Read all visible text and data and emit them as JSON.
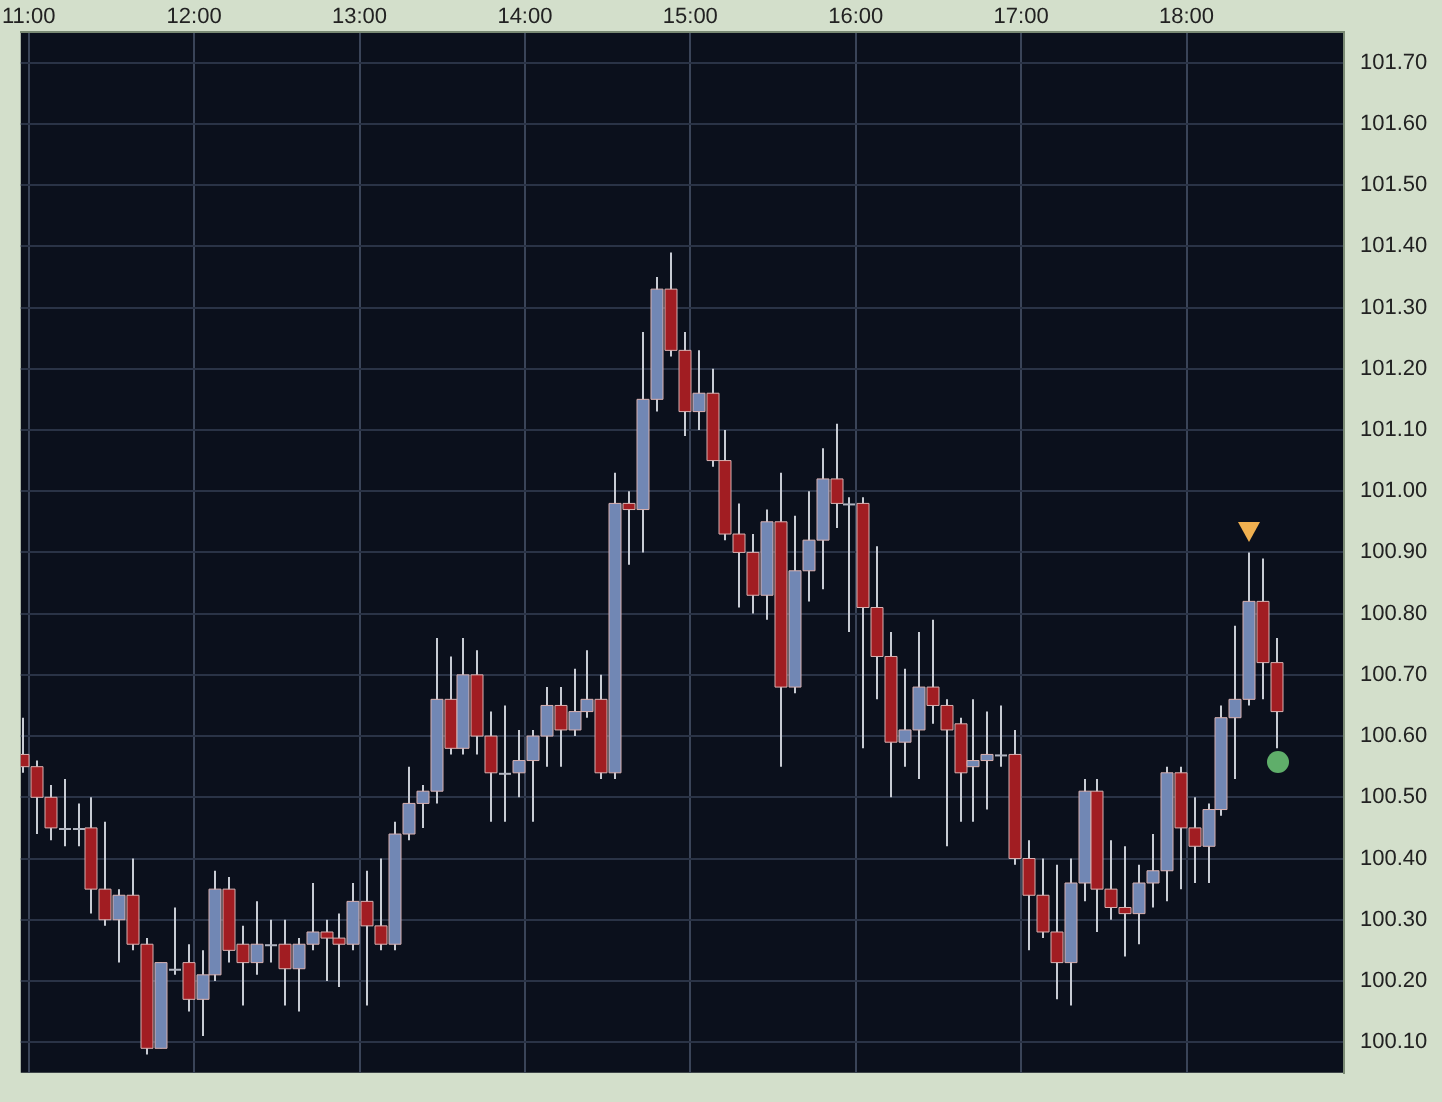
{
  "chart_data": {
    "type": "candlestick",
    "x": [
      10.958,
      11.042,
      11.125,
      11.208,
      11.292,
      11.375,
      11.458,
      11.542,
      11.625,
      11.708,
      11.792,
      11.875,
      11.958,
      12.042,
      12.125,
      12.208,
      12.292,
      12.375,
      12.458,
      12.542,
      12.625,
      12.708,
      12.792,
      12.875,
      12.958,
      13.042,
      13.125,
      13.208,
      13.292,
      13.375,
      13.458,
      13.542,
      13.625,
      13.708,
      13.792,
      13.875,
      13.958,
      14.042,
      14.125,
      14.208,
      14.292,
      14.375,
      14.458,
      14.542,
      14.625,
      14.708,
      14.792,
      14.875,
      14.958,
      15.042,
      15.125,
      15.208,
      15.292,
      15.375,
      15.458,
      15.542,
      15.625,
      15.708,
      15.792,
      15.875,
      15.958,
      16.042,
      16.125,
      16.208,
      16.292,
      16.375,
      16.458,
      16.542,
      16.625,
      16.708,
      16.792,
      16.875,
      16.958,
      17.042,
      17.125,
      17.208,
      17.292,
      17.375,
      17.458,
      17.542,
      17.625,
      17.708,
      17.792,
      17.875,
      17.958,
      18.042,
      18.125,
      18.208,
      18.292,
      18.375,
      18.458,
      18.542
    ],
    "ohlc": [
      [
        100.57,
        100.63,
        100.54,
        100.55
      ],
      [
        100.55,
        100.56,
        100.44,
        100.5
      ],
      [
        100.5,
        100.52,
        100.43,
        100.45
      ],
      [
        100.45,
        100.53,
        100.42,
        100.45
      ],
      [
        100.45,
        100.49,
        100.42,
        100.45
      ],
      [
        100.45,
        100.5,
        100.31,
        100.35
      ],
      [
        100.35,
        100.46,
        100.29,
        100.3
      ],
      [
        100.3,
        100.35,
        100.23,
        100.34
      ],
      [
        100.34,
        100.4,
        100.25,
        100.26
      ],
      [
        100.26,
        100.27,
        100.08,
        100.09
      ],
      [
        100.09,
        100.23,
        100.09,
        100.23
      ],
      [
        100.22,
        100.32,
        100.21,
        100.22
      ],
      [
        100.23,
        100.26,
        100.15,
        100.17
      ],
      [
        100.17,
        100.25,
        100.11,
        100.21
      ],
      [
        100.21,
        100.38,
        100.2,
        100.35
      ],
      [
        100.35,
        100.37,
        100.23,
        100.25
      ],
      [
        100.26,
        100.29,
        100.16,
        100.23
      ],
      [
        100.23,
        100.33,
        100.21,
        100.26
      ],
      [
        100.26,
        100.3,
        100.23,
        100.26
      ],
      [
        100.26,
        100.3,
        100.16,
        100.22
      ],
      [
        100.22,
        100.27,
        100.15,
        100.26
      ],
      [
        100.26,
        100.36,
        100.25,
        100.28
      ],
      [
        100.28,
        100.3,
        100.2,
        100.27
      ],
      [
        100.27,
        100.31,
        100.19,
        100.26
      ],
      [
        100.26,
        100.36,
        100.25,
        100.33
      ],
      [
        100.33,
        100.38,
        100.16,
        100.29
      ],
      [
        100.29,
        100.4,
        100.25,
        100.26
      ],
      [
        100.26,
        100.46,
        100.25,
        100.44
      ],
      [
        100.44,
        100.55,
        100.43,
        100.49
      ],
      [
        100.49,
        100.52,
        100.45,
        100.51
      ],
      [
        100.51,
        100.76,
        100.49,
        100.66
      ],
      [
        100.66,
        100.73,
        100.57,
        100.58
      ],
      [
        100.58,
        100.76,
        100.57,
        100.7
      ],
      [
        100.7,
        100.74,
        100.57,
        100.6
      ],
      [
        100.6,
        100.64,
        100.46,
        100.54
      ],
      [
        100.54,
        100.65,
        100.46,
        100.54
      ],
      [
        100.54,
        100.61,
        100.5,
        100.56
      ],
      [
        100.56,
        100.61,
        100.46,
        100.6
      ],
      [
        100.6,
        100.68,
        100.55,
        100.65
      ],
      [
        100.65,
        100.68,
        100.55,
        100.61
      ],
      [
        100.61,
        100.71,
        100.6,
        100.64
      ],
      [
        100.64,
        100.74,
        100.63,
        100.66
      ],
      [
        100.66,
        100.7,
        100.53,
        100.54
      ],
      [
        100.54,
        101.03,
        100.53,
        100.98
      ],
      [
        100.98,
        101.0,
        100.88,
        100.97
      ],
      [
        100.97,
        101.26,
        100.9,
        101.15
      ],
      [
        101.15,
        101.35,
        101.13,
        101.33
      ],
      [
        101.33,
        101.39,
        101.22,
        101.23
      ],
      [
        101.23,
        101.26,
        101.09,
        101.13
      ],
      [
        101.13,
        101.23,
        101.1,
        101.16
      ],
      [
        101.16,
        101.2,
        101.04,
        101.05
      ],
      [
        101.05,
        101.1,
        100.92,
        100.93
      ],
      [
        100.93,
        100.98,
        100.81,
        100.9
      ],
      [
        100.9,
        100.93,
        100.8,
        100.83
      ],
      [
        100.83,
        100.97,
        100.79,
        100.95
      ],
      [
        100.95,
        101.03,
        100.55,
        100.68
      ],
      [
        100.68,
        100.96,
        100.67,
        100.87
      ],
      [
        100.87,
        101.0,
        100.82,
        100.92
      ],
      [
        100.92,
        101.07,
        100.84,
        101.02
      ],
      [
        101.02,
        101.11,
        100.94,
        100.98
      ],
      [
        100.98,
        100.99,
        100.77,
        100.98
      ],
      [
        100.98,
        100.99,
        100.58,
        100.81
      ],
      [
        100.81,
        100.91,
        100.66,
        100.73
      ],
      [
        100.73,
        100.77,
        100.5,
        100.59
      ],
      [
        100.59,
        100.71,
        100.55,
        100.61
      ],
      [
        100.61,
        100.77,
        100.53,
        100.68
      ],
      [
        100.68,
        100.79,
        100.62,
        100.65
      ],
      [
        100.65,
        100.66,
        100.42,
        100.61
      ],
      [
        100.62,
        100.63,
        100.46,
        100.54
      ],
      [
        100.55,
        100.66,
        100.46,
        100.56
      ],
      [
        100.56,
        100.64,
        100.48,
        100.57
      ],
      [
        100.57,
        100.65,
        100.55,
        100.57
      ],
      [
        100.57,
        100.61,
        100.39,
        100.4
      ],
      [
        100.4,
        100.43,
        100.25,
        100.34
      ],
      [
        100.34,
        100.4,
        100.27,
        100.28
      ],
      [
        100.28,
        100.39,
        100.17,
        100.23
      ],
      [
        100.23,
        100.4,
        100.16,
        100.36
      ],
      [
        100.36,
        100.53,
        100.33,
        100.51
      ],
      [
        100.51,
        100.53,
        100.28,
        100.35
      ],
      [
        100.35,
        100.43,
        100.3,
        100.32
      ],
      [
        100.32,
        100.42,
        100.24,
        100.31
      ],
      [
        100.31,
        100.39,
        100.26,
        100.36
      ],
      [
        100.36,
        100.44,
        100.32,
        100.38
      ],
      [
        100.38,
        100.55,
        100.33,
        100.54
      ],
      [
        100.54,
        100.55,
        100.35,
        100.45
      ],
      [
        100.45,
        100.5,
        100.36,
        100.42
      ],
      [
        100.42,
        100.49,
        100.36,
        100.48
      ],
      [
        100.48,
        100.65,
        100.47,
        100.63
      ],
      [
        100.63,
        100.78,
        100.53,
        100.66
      ],
      [
        100.66,
        100.9,
        100.65,
        100.82
      ],
      [
        100.82,
        100.89,
        100.66,
        100.72
      ],
      [
        100.72,
        100.76,
        100.58,
        100.64
      ]
    ],
    "colors": [
      "#a11d22",
      "#a11d22",
      "#a11d22",
      "#b0b4c0",
      "#b0b4c0",
      "#a11d22",
      "#a11d22",
      "#7187b4",
      "#a11d22",
      "#a11d22",
      "#7187b4",
      "#b0b4c0",
      "#a11d22",
      "#7187b4",
      "#7187b4",
      "#a11d22",
      "#a11d22",
      "#7187b4",
      "#b0b4c0",
      "#a11d22",
      "#7187b4",
      "#7187b4",
      "#a11d22",
      "#a11d22",
      "#7187b4",
      "#a11d22",
      "#a11d22",
      "#7187b4",
      "#7187b4",
      "#7187b4",
      "#7187b4",
      "#a11d22",
      "#7187b4",
      "#a11d22",
      "#a11d22",
      "#b0b4c0",
      "#7187b4",
      "#7187b4",
      "#7187b4",
      "#a11d22",
      "#7187b4",
      "#7187b4",
      "#a11d22",
      "#7187b4",
      "#a11d22",
      "#7187b4",
      "#7187b4",
      "#a11d22",
      "#a11d22",
      "#7187b4",
      "#a11d22",
      "#a11d22",
      "#a11d22",
      "#a11d22",
      "#7187b4",
      "#a11d22",
      "#7187b4",
      "#7187b4",
      "#7187b4",
      "#a11d22",
      "#b0b4c0",
      "#a11d22",
      "#a11d22",
      "#a11d22",
      "#7187b4",
      "#7187b4",
      "#a11d22",
      "#a11d22",
      "#a11d22",
      "#7187b4",
      "#7187b4",
      "#b0b4c0",
      "#a11d22",
      "#a11d22",
      "#a11d22",
      "#a11d22",
      "#7187b4",
      "#7187b4",
      "#a11d22",
      "#a11d22",
      "#a11d22",
      "#7187b4",
      "#7187b4",
      "#7187b4",
      "#a11d22",
      "#a11d22",
      "#7187b4",
      "#7187b4",
      "#7187b4",
      "#7187b4",
      "#a11d22",
      "#a11d22"
    ],
    "xlim": [
      10.952,
      18.952
    ],
    "xticks": [
      {
        "value": 11,
        "label": "11:00"
      },
      {
        "value": 12,
        "label": "12:00"
      },
      {
        "value": 13,
        "label": "13:00"
      },
      {
        "value": 14,
        "label": "14:00"
      },
      {
        "value": 15,
        "label": "15:00"
      },
      {
        "value": 16,
        "label": "16:00"
      },
      {
        "value": 17,
        "label": "17:00"
      },
      {
        "value": 18,
        "label": "18:00"
      }
    ],
    "ylim": [
      100.05,
      101.75
    ],
    "yticks": [
      {
        "value": 100.1,
        "label": "100.10"
      },
      {
        "value": 100.2,
        "label": "100.20"
      },
      {
        "value": 100.3,
        "label": "100.30"
      },
      {
        "value": 100.4,
        "label": "100.40"
      },
      {
        "value": 100.5,
        "label": "100.50"
      },
      {
        "value": 100.6,
        "label": "100.60"
      },
      {
        "value": 100.7,
        "label": "100.70"
      },
      {
        "value": 100.8,
        "label": "100.80"
      },
      {
        "value": 100.9,
        "label": "100.90"
      },
      {
        "value": 101,
        "label": "101.00"
      },
      {
        "value": 101.1,
        "label": "101.10"
      },
      {
        "value": 101.2,
        "label": "101.20"
      },
      {
        "value": 101.3,
        "label": "101.30"
      },
      {
        "value": 101.4,
        "label": "101.40"
      },
      {
        "value": 101.5,
        "label": "101.50"
      },
      {
        "value": 101.6,
        "label": "101.60"
      },
      {
        "value": 101.7,
        "label": "101.70"
      }
    ],
    "grid": true
  }
}
